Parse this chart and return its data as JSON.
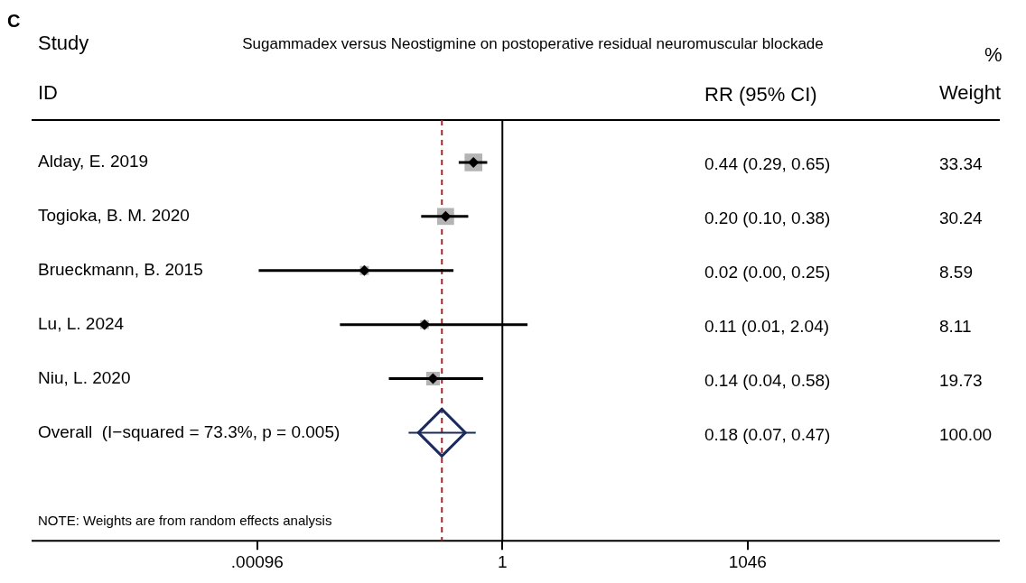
{
  "chart_data": {
    "type": "scatter",
    "orientation": "horizontal",
    "title": "Sugammadex versus Neostigmine on postoperative residual neuromuscular blockade",
    "categories": [
      "Alday, E. 2019",
      "Togioka, B. M. 2020",
      "Brueckmann, B. 2015",
      "Lu, L. 2024",
      "Niu, L. 2020",
      "Overall  (I−squared = 73.3%, p = 0.005)"
    ],
    "series": [
      {
        "color": "#000000",
        "marker": "diamond",
        "values": [
          0.44,
          0.2,
          0.02,
          0.11,
          0.14,
          null
        ],
        "errors": [
          [
            0.29,
            0.65
          ],
          [
            0.1,
            0.38
          ],
          [
            0.001,
            0.25
          ],
          [
            0.01,
            2.04
          ],
          [
            0.04,
            0.58
          ],
          null
        ]
      },
      {
        "color": "#1b2a5c",
        "marker": "diamond",
        "values": [
          null,
          null,
          null,
          null,
          null,
          0.18
        ],
        "errors": [
          null,
          null,
          null,
          null,
          null,
          [
            0.07,
            0.47
          ]
        ]
      }
    ],
    "log": "x",
    "xlim": [
      1.6e-06,
      1330000
    ],
    "xticks": [
      {
        "value": 0.00096,
        "label": ".00096"
      },
      1,
      {
        "value": 1046,
        "label": "1046"
      }
    ],
    "ref_lines": [
      {
        "axis": "x",
        "value": 1,
        "color": "#000000",
        "line_style": "solid"
      },
      {
        "axis": "x",
        "value": 0.18,
        "color": "#a3262a",
        "line_style": "dashed"
      }
    ],
    "annotations": [
      "C",
      "Study",
      "ID",
      "RR (95% CI)",
      "%",
      "Weight",
      "NOTE: Weights are from random effects analysis",
      "0.44 (0.29, 0.65)",
      "0.20 (0.10, 0.38)",
      "0.02 (0.00, 0.25)",
      "0.11 (0.01, 2.04)",
      "0.14 (0.04, 0.58)",
      "0.18 (0.07, 0.47)",
      "33.34",
      "30.24",
      "8.59",
      "8.11",
      "19.73",
      "100.00"
    ],
    "grid": false,
    "legend": false
  }
}
